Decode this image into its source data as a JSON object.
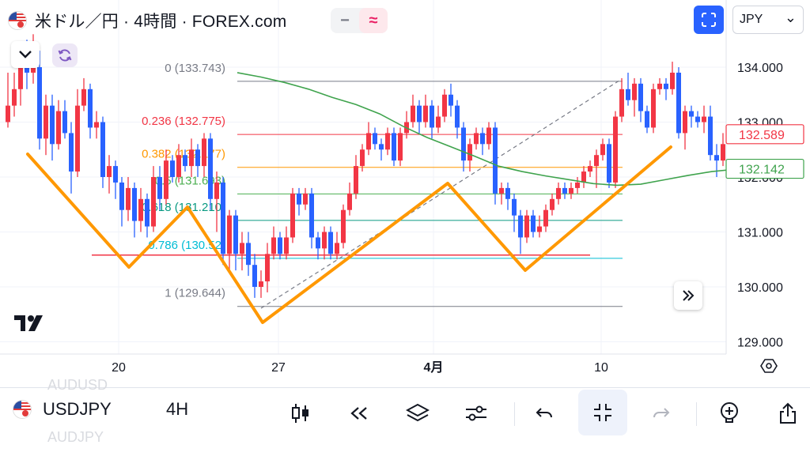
{
  "header": {
    "title": "米ドル／円 · 4時間 · FOREX.com",
    "pill_a": "−",
    "pill_b": "≈",
    "currency": "JPY",
    "currency_arrow": "⌄"
  },
  "chart_data": {
    "type": "candlestick",
    "symbol": "USDJPY",
    "timeframe": "4H",
    "ylim": [
      128.9,
      134.2
    ],
    "y_ticks": [
      "134.000",
      "133.000",
      "132.000",
      "131.000",
      "130.000",
      "129.000"
    ],
    "x_ticks": [
      "20",
      "27",
      "4月",
      "10"
    ],
    "last_price": "132.589",
    "ma_price": "132.142",
    "fib_levels": [
      {
        "label": "0 (133.743)",
        "value": 133.743,
        "color": "#787b86"
      },
      {
        "label": "0.236 (132.775)",
        "value": 132.775,
        "color": "#f23645"
      },
      {
        "label": "0.382 (132.177)",
        "value": 132.177,
        "color": "#ff9800"
      },
      {
        "label": "0.5 (131.693)",
        "value": 131.693,
        "color": "#4caf50"
      },
      {
        "label": "0.618 (131.210)",
        "value": 131.21,
        "color": "#089981"
      },
      {
        "label": "0.786 (130.52)",
        "value": 130.52,
        "color": "#00bcd4"
      },
      {
        "label": "1 (129.644)",
        "value": 129.644,
        "color": "#787b86"
      }
    ],
    "horizontal_line": 130.58,
    "moving_average": [
      [
        300,
        133.9
      ],
      [
        330,
        133.82
      ],
      [
        360,
        133.72
      ],
      [
        390,
        133.6
      ],
      [
        420,
        133.45
      ],
      [
        450,
        133.32
      ],
      [
        480,
        133.15
      ],
      [
        510,
        132.92
      ],
      [
        540,
        132.72
      ],
      [
        570,
        132.55
      ],
      [
        600,
        132.38
      ],
      [
        630,
        132.2
      ],
      [
        660,
        132.1
      ],
      [
        690,
        132.02
      ],
      [
        720,
        131.95
      ],
      [
        750,
        131.88
      ],
      [
        780,
        131.85
      ],
      [
        810,
        131.87
      ],
      [
        840,
        131.95
      ],
      [
        870,
        132.03
      ],
      [
        900,
        132.1
      ],
      [
        930,
        132.142
      ]
    ],
    "candles": [
      [
        10,
        133.0,
        133.3,
        133.9,
        132.9
      ],
      [
        18,
        133.3,
        133.6,
        133.9,
        133.1
      ],
      [
        26,
        133.6,
        134.2,
        134.3,
        133.3
      ],
      [
        34,
        134.2,
        133.9,
        134.5,
        133.6
      ],
      [
        42,
        133.9,
        134.3,
        134.6,
        133.7
      ],
      [
        50,
        134.0,
        132.7,
        134.3,
        132.5
      ],
      [
        58,
        132.7,
        133.3,
        133.5,
        132.4
      ],
      [
        66,
        133.3,
        132.6,
        133.5,
        132.3
      ],
      [
        74,
        132.6,
        133.2,
        133.4,
        132.5
      ],
      [
        82,
        133.2,
        132.8,
        133.4,
        132.7
      ],
      [
        90,
        132.8,
        132.1,
        133.0,
        131.7
      ],
      [
        98,
        132.1,
        133.3,
        133.6,
        132.0
      ],
      [
        106,
        133.3,
        133.6,
        133.8,
        133.2
      ],
      [
        114,
        133.6,
        132.9,
        133.7,
        132.7
      ],
      [
        122,
        132.9,
        133.0,
        133.2,
        132.7
      ],
      [
        130,
        133.0,
        132.0,
        133.1,
        131.8
      ],
      [
        138,
        132.0,
        132.2,
        132.4,
        131.7
      ],
      [
        146,
        132.2,
        131.9,
        132.3,
        131.6
      ],
      [
        154,
        131.9,
        131.4,
        132.0,
        131.1
      ],
      [
        162,
        131.4,
        131.8,
        132.0,
        131.2
      ],
      [
        170,
        131.8,
        131.2,
        131.9,
        130.9
      ],
      [
        178,
        131.2,
        131.6,
        131.8,
        131.0
      ],
      [
        186,
        131.6,
        131.1,
        131.7,
        130.9
      ],
      [
        194,
        131.1,
        132.0,
        132.2,
        131.0
      ],
      [
        202,
        132.0,
        131.6,
        132.2,
        131.4
      ],
      [
        210,
        131.6,
        132.3,
        132.5,
        131.5
      ],
      [
        218,
        132.3,
        132.0,
        132.4,
        131.9
      ],
      [
        226,
        132.0,
        132.4,
        132.6,
        131.9
      ],
      [
        234,
        132.4,
        132.2,
        132.5,
        132.1
      ],
      [
        242,
        132.2,
        132.5,
        132.7,
        132.0
      ],
      [
        250,
        132.5,
        132.2,
        132.6,
        132.0
      ],
      [
        258,
        132.2,
        132.7,
        132.8,
        132.0
      ],
      [
        266,
        132.7,
        131.6,
        132.8,
        131.4
      ],
      [
        274,
        131.6,
        131.9,
        132.1,
        131.0
      ],
      [
        282,
        131.9,
        130.6,
        132.0,
        130.4
      ],
      [
        290,
        130.6,
        131.3,
        131.4,
        130.3
      ],
      [
        298,
        131.3,
        130.6,
        131.4,
        130.3
      ],
      [
        306,
        130.6,
        130.8,
        131.0,
        130.3
      ],
      [
        314,
        130.8,
        130.4,
        131.0,
        130.2
      ],
      [
        322,
        130.4,
        130.0,
        130.6,
        129.8
      ],
      [
        330,
        130.0,
        130.1,
        130.3,
        129.8
      ],
      [
        338,
        130.1,
        130.6,
        130.8,
        129.9
      ],
      [
        346,
        130.6,
        130.9,
        131.1,
        130.5
      ],
      [
        354,
        130.9,
        130.6,
        131.0,
        130.5
      ],
      [
        362,
        130.6,
        130.9,
        131.1,
        130.5
      ],
      [
        370,
        130.9,
        131.7,
        131.8,
        130.8
      ],
      [
        378,
        131.7,
        131.5,
        131.8,
        131.3
      ],
      [
        386,
        131.5,
        131.7,
        131.8,
        131.4
      ],
      [
        394,
        131.7,
        130.9,
        131.8,
        130.7
      ],
      [
        402,
        130.9,
        130.7,
        131.0,
        130.5
      ],
      [
        410,
        130.7,
        131.0,
        131.1,
        130.5
      ],
      [
        418,
        131.0,
        130.6,
        131.1,
        130.5
      ],
      [
        426,
        130.6,
        130.8,
        131.0,
        130.5
      ],
      [
        434,
        130.8,
        131.4,
        131.5,
        130.7
      ],
      [
        442,
        131.4,
        131.7,
        131.9,
        131.3
      ],
      [
        450,
        131.7,
        132.2,
        132.4,
        131.6
      ],
      [
        458,
        132.2,
        132.5,
        132.6,
        132.1
      ],
      [
        466,
        132.5,
        132.8,
        133.0,
        132.4
      ],
      [
        474,
        132.8,
        132.6,
        132.9,
        132.5
      ],
      [
        482,
        132.6,
        132.5,
        132.7,
        132.3
      ],
      [
        490,
        132.5,
        132.8,
        132.9,
        132.4
      ],
      [
        498,
        132.8,
        132.3,
        132.9,
        132.2
      ],
      [
        506,
        132.3,
        132.8,
        132.9,
        132.2
      ],
      [
        514,
        132.8,
        133.0,
        133.2,
        132.7
      ],
      [
        522,
        133.0,
        133.3,
        133.5,
        132.9
      ],
      [
        530,
        133.3,
        133.0,
        133.4,
        132.8
      ],
      [
        538,
        133.0,
        133.3,
        133.5,
        132.9
      ],
      [
        546,
        133.3,
        132.9,
        133.4,
        132.7
      ],
      [
        554,
        132.9,
        133.1,
        133.3,
        132.8
      ],
      [
        562,
        133.1,
        133.5,
        133.6,
        133.0
      ],
      [
        570,
        133.5,
        133.3,
        133.7,
        133.1
      ],
      [
        578,
        133.3,
        132.9,
        133.4,
        132.7
      ],
      [
        586,
        132.9,
        132.3,
        133.0,
        132.1
      ],
      [
        594,
        132.3,
        132.6,
        132.7,
        132.1
      ],
      [
        602,
        132.6,
        132.8,
        132.9,
        132.5
      ],
      [
        610,
        132.8,
        132.6,
        132.9,
        132.4
      ],
      [
        618,
        132.6,
        132.9,
        133.0,
        132.5
      ],
      [
        626,
        132.9,
        131.7,
        133.0,
        131.5
      ],
      [
        634,
        131.7,
        131.8,
        131.9,
        131.5
      ],
      [
        642,
        131.8,
        131.6,
        131.9,
        131.4
      ],
      [
        650,
        131.6,
        131.3,
        131.7,
        131.0
      ],
      [
        658,
        131.3,
        130.9,
        131.4,
        130.6
      ],
      [
        666,
        130.9,
        131.3,
        131.4,
        130.8
      ],
      [
        674,
        131.3,
        131.0,
        131.4,
        130.9
      ],
      [
        682,
        131.0,
        131.1,
        131.3,
        130.9
      ],
      [
        690,
        131.1,
        131.4,
        131.5,
        131.0
      ],
      [
        698,
        131.4,
        131.6,
        131.7,
        131.3
      ],
      [
        706,
        131.6,
        131.8,
        131.9,
        131.5
      ],
      [
        714,
        131.8,
        131.7,
        131.9,
        131.6
      ],
      [
        722,
        131.7,
        131.8,
        131.9,
        131.6
      ],
      [
        730,
        131.8,
        131.9,
        132.0,
        131.7
      ],
      [
        738,
        131.9,
        132.1,
        132.2,
        131.8
      ],
      [
        746,
        132.1,
        132.2,
        132.3,
        132.0
      ],
      [
        754,
        132.2,
        132.4,
        132.5,
        131.8
      ],
      [
        762,
        132.4,
        132.6,
        132.7,
        132.3
      ],
      [
        770,
        132.6,
        131.9,
        132.7,
        131.8
      ],
      [
        778,
        131.9,
        133.1,
        133.2,
        131.8
      ],
      [
        786,
        133.1,
        133.6,
        133.8,
        133.0
      ],
      [
        794,
        133.6,
        133.4,
        133.9,
        133.3
      ],
      [
        802,
        133.4,
        133.7,
        133.8,
        133.1
      ],
      [
        810,
        133.7,
        133.2,
        133.8,
        133.0
      ],
      [
        818,
        133.2,
        132.9,
        133.3,
        132.8
      ],
      [
        826,
        132.9,
        133.6,
        133.7,
        132.8
      ],
      [
        834,
        133.6,
        133.7,
        133.8,
        133.5
      ],
      [
        842,
        133.7,
        133.6,
        133.8,
        133.4
      ],
      [
        850,
        133.6,
        133.9,
        134.1,
        133.5
      ],
      [
        858,
        133.9,
        132.8,
        134.0,
        132.7
      ],
      [
        866,
        132.8,
        133.2,
        133.3,
        132.5
      ],
      [
        874,
        133.2,
        133.1,
        133.3,
        132.9
      ],
      [
        882,
        133.1,
        133.0,
        133.2,
        132.9
      ],
      [
        890,
        133.0,
        133.1,
        133.3,
        132.8
      ],
      [
        898,
        133.1,
        132.4,
        133.3,
        132.3
      ],
      [
        906,
        132.4,
        132.3,
        132.6,
        132.0
      ],
      [
        914,
        132.3,
        132.6,
        132.8,
        132.2
      ]
    ],
    "zigzag": [
      [
        35,
        195
      ],
      [
        163,
        338
      ],
      [
        237,
        262
      ],
      [
        332,
        408
      ],
      [
        566,
        232
      ],
      [
        664,
        342
      ],
      [
        848,
        186
      ]
    ],
    "trend_line": [
      [
        330,
        390
      ],
      [
        786,
        100
      ]
    ]
  },
  "bottom": {
    "symbol": "USDJPY",
    "timeframe": "4H",
    "ghost_above": "AUDUSD",
    "ghost_below": "AUDJPY"
  }
}
